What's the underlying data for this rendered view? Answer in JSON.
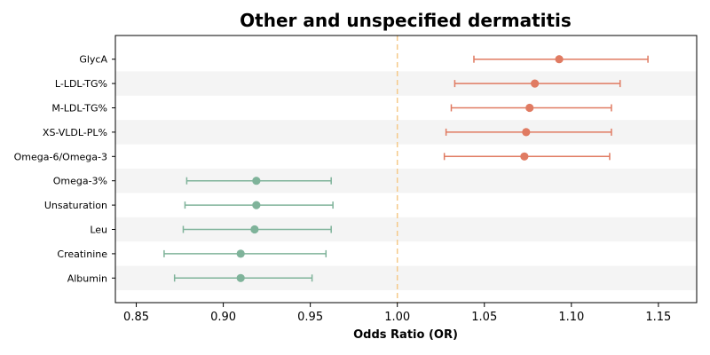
{
  "chart_data": {
    "type": "forest",
    "title": "Other and unspecified dermatitis",
    "xlabel": "Odds Ratio (OR)",
    "ylabel": "",
    "xlim": [
      0.838,
      1.172
    ],
    "xticks": [
      "0.85",
      "0.90",
      "0.95",
      "1.00",
      "1.05",
      "1.10",
      "1.15"
    ],
    "reference_line": 1.0,
    "colors": {
      "risk": "#e07b62",
      "protective": "#7fb39a",
      "reference": "#f5c98a",
      "band": "#f4f4f4"
    },
    "rows": [
      {
        "label": "GlycA",
        "or": 1.093,
        "lower": 1.044,
        "upper": 1.144,
        "direction": "risk"
      },
      {
        "label": "L-LDL-TG%",
        "or": 1.079,
        "lower": 1.033,
        "upper": 1.128,
        "direction": "risk"
      },
      {
        "label": "M-LDL-TG%",
        "or": 1.076,
        "lower": 1.031,
        "upper": 1.123,
        "direction": "risk"
      },
      {
        "label": "XS-VLDL-PL%",
        "or": 1.074,
        "lower": 1.028,
        "upper": 1.123,
        "direction": "risk"
      },
      {
        "label": "Omega-6/Omega-3",
        "or": 1.073,
        "lower": 1.027,
        "upper": 1.122,
        "direction": "risk"
      },
      {
        "label": "Omega-3%",
        "or": 0.919,
        "lower": 0.879,
        "upper": 0.962,
        "direction": "protective"
      },
      {
        "label": "Unsaturation",
        "or": 0.919,
        "lower": 0.878,
        "upper": 0.963,
        "direction": "protective"
      },
      {
        "label": "Leu",
        "or": 0.918,
        "lower": 0.877,
        "upper": 0.962,
        "direction": "protective"
      },
      {
        "label": "Creatinine",
        "or": 0.91,
        "lower": 0.866,
        "upper": 0.959,
        "direction": "protective"
      },
      {
        "label": "Albumin",
        "or": 0.91,
        "lower": 0.872,
        "upper": 0.951,
        "direction": "protective"
      }
    ]
  }
}
